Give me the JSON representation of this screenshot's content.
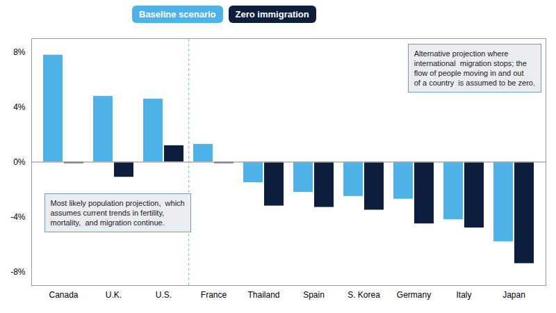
{
  "chart_data": {
    "type": "bar",
    "categories": [
      "Canada",
      "U.K.",
      "U.S.",
      "France",
      "Thailand",
      "Spain",
      "S. Korea",
      "Germany",
      "Italy",
      "Japan"
    ],
    "series": [
      {
        "name": "Baseline scenario",
        "color": "#4EB3E8",
        "values": [
          7.8,
          4.8,
          4.6,
          1.3,
          -1.5,
          -2.2,
          -2.5,
          -2.7,
          -4.2,
          -5.8
        ]
      },
      {
        "name": "Zero immigration",
        "color": "#0D1F3C",
        "values": [
          -0.1,
          -1.1,
          1.2,
          -0.1,
          -3.2,
          -3.3,
          -3.5,
          -4.5,
          -4.8,
          -7.4
        ]
      }
    ],
    "ylim": [
      -9,
      9
    ],
    "yticks": [
      {
        "value": -8,
        "label": "-8%"
      },
      {
        "value": -4,
        "label": "-4%"
      },
      {
        "value": 0,
        "label": "0%"
      },
      {
        "value": 4,
        "label": "4%"
      },
      {
        "value": 8,
        "label": "8%"
      }
    ],
    "annotations": [
      {
        "text": "Alternative projection where\ninternational  migration stops; the\nflow of people moving in and out\nof a country  is assumed to be zero."
      },
      {
        "text": "Most likely population projection,  which\nassumes current trends in fertility,\nmortality,  and migration continue."
      }
    ],
    "legend": "top",
    "grid": false
  }
}
